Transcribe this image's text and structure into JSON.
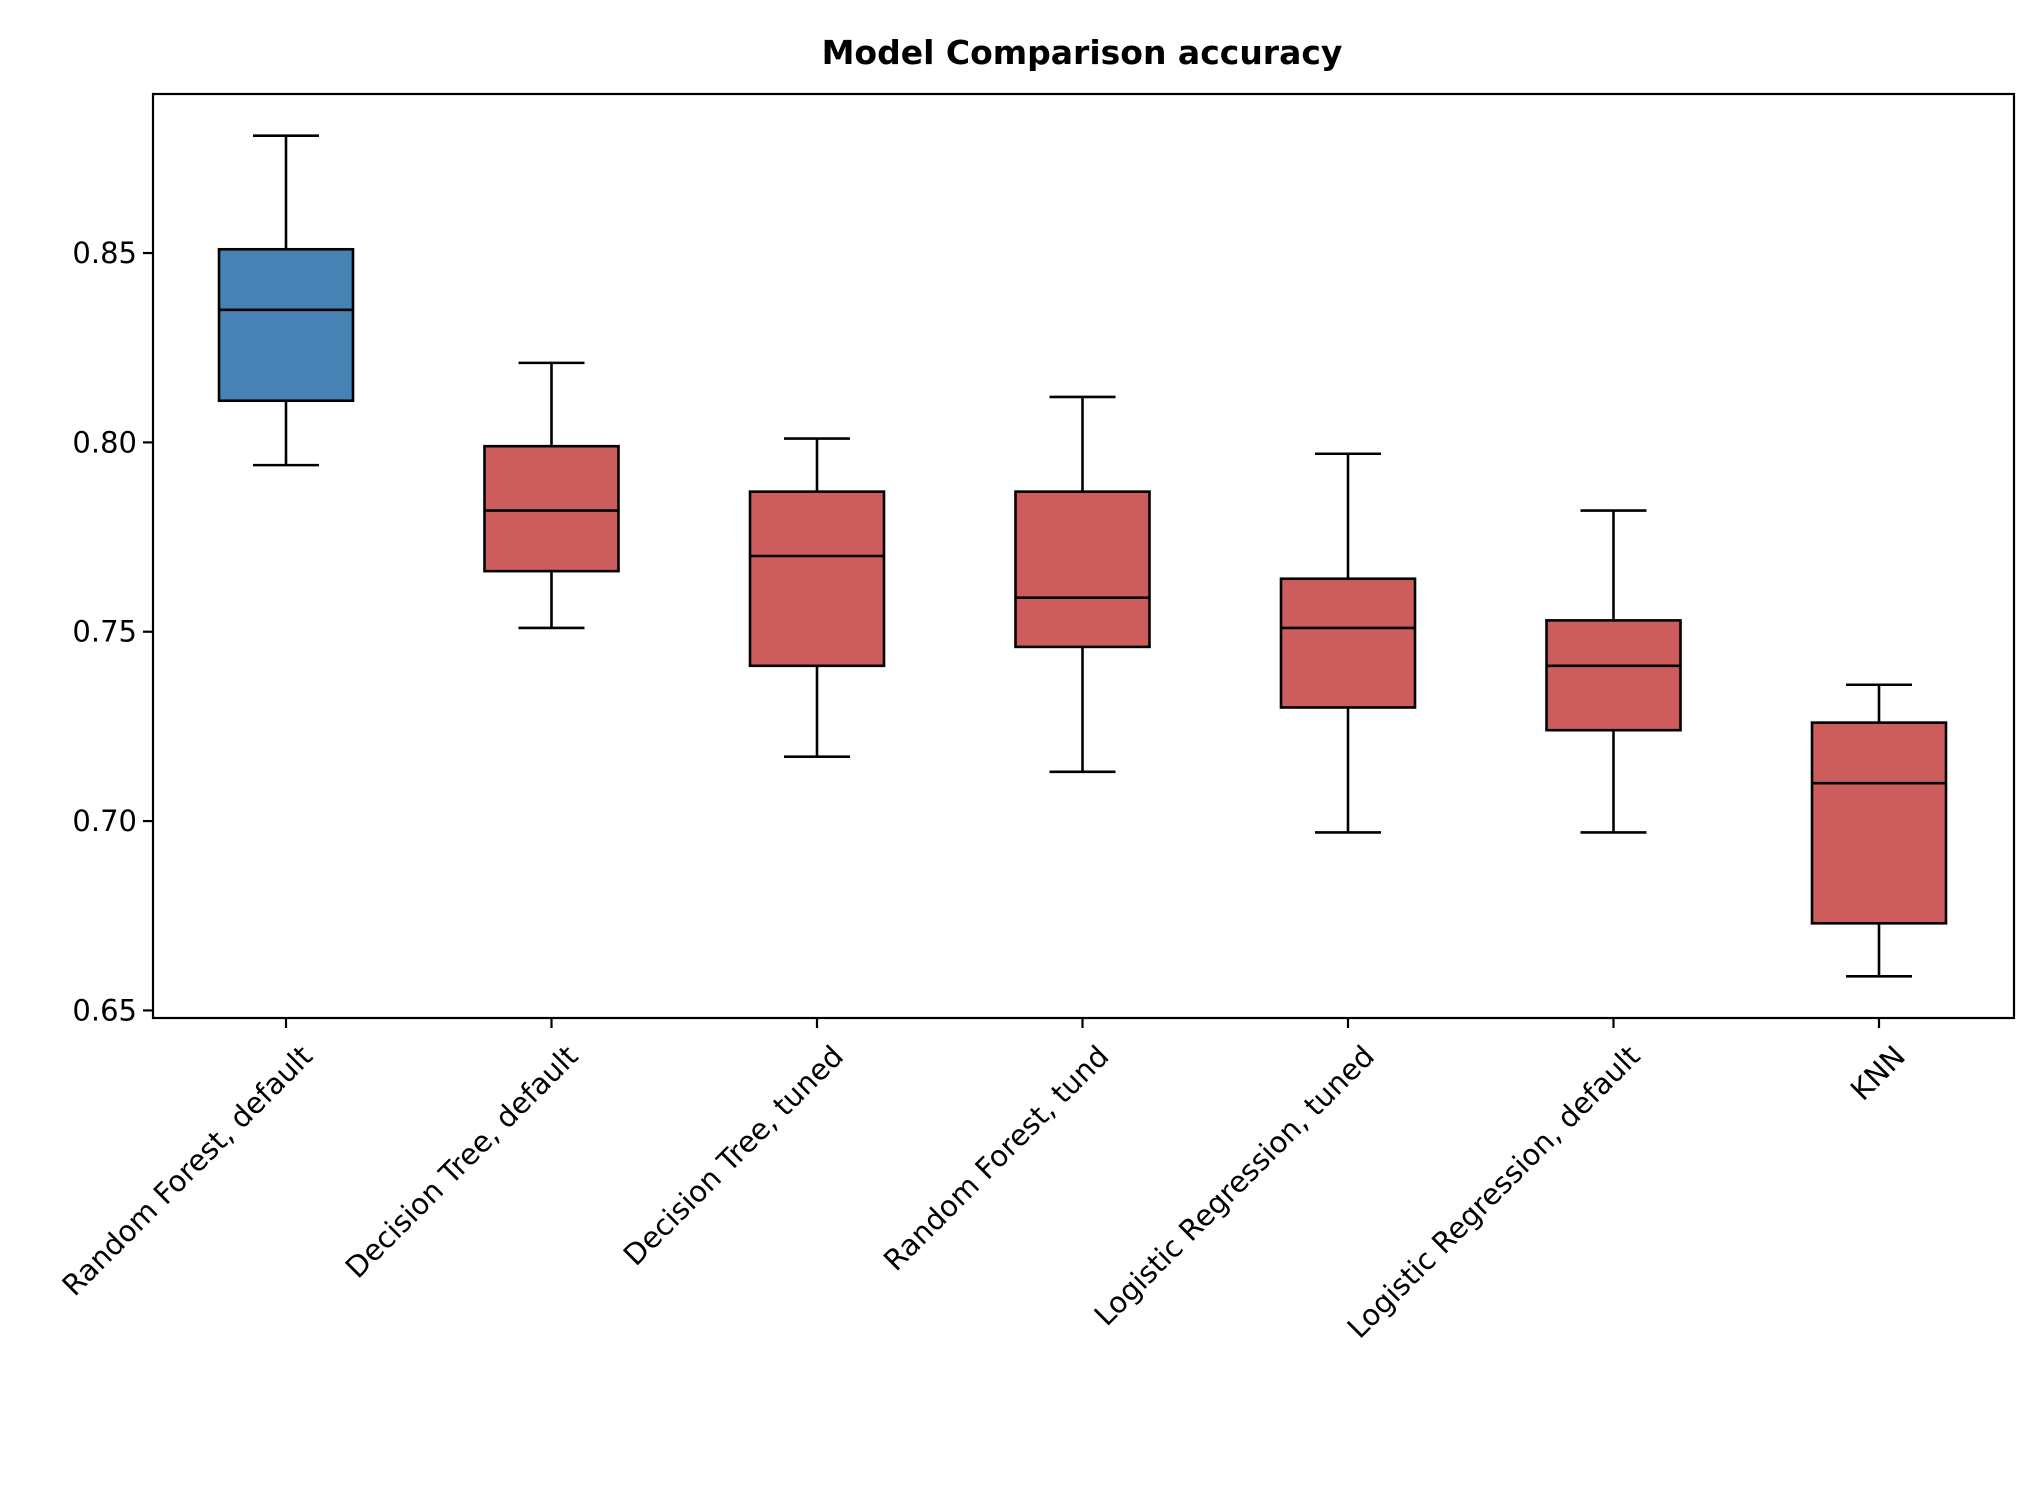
{
  "chart_data": {
    "type": "box",
    "title": "Model Comparison accuracy",
    "xlabel": "",
    "ylabel": "",
    "ylim": [
      0.648,
      0.892
    ],
    "yticks": [
      {
        "value": 0.65,
        "label": "0.65"
      },
      {
        "value": 0.7,
        "label": "0.70"
      },
      {
        "value": 0.75,
        "label": "0.75"
      },
      {
        "value": 0.8,
        "label": "0.80"
      },
      {
        "value": 0.85,
        "label": "0.85"
      }
    ],
    "grid": false,
    "categories": [
      "Random Forest, default",
      "Decision Tree, default",
      "Decision Tree, tuned",
      "Random Forest, tund",
      "Logistic Regression, tuned",
      "Logistic Regression, default",
      "KNN"
    ],
    "boxes": [
      {
        "category": "Random Forest, default",
        "whisker_low": 0.794,
        "q1": 0.811,
        "median": 0.835,
        "q3": 0.851,
        "whisker_high": 0.881,
        "color": "#4682b4"
      },
      {
        "category": "Decision Tree, default",
        "whisker_low": 0.751,
        "q1": 0.766,
        "median": 0.782,
        "q3": 0.799,
        "whisker_high": 0.821,
        "color": "#cd5c5c"
      },
      {
        "category": "Decision Tree, tuned",
        "whisker_low": 0.717,
        "q1": 0.741,
        "median": 0.77,
        "q3": 0.787,
        "whisker_high": 0.801,
        "color": "#cd5c5c"
      },
      {
        "category": "Random Forest, tund",
        "whisker_low": 0.713,
        "q1": 0.746,
        "median": 0.759,
        "q3": 0.787,
        "whisker_high": 0.812,
        "color": "#cd5c5c"
      },
      {
        "category": "Logistic Regression, tuned",
        "whisker_low": 0.697,
        "q1": 0.73,
        "median": 0.751,
        "q3": 0.764,
        "whisker_high": 0.797,
        "color": "#cd5c5c"
      },
      {
        "category": "Logistic Regression, default",
        "whisker_low": 0.697,
        "q1": 0.724,
        "median": 0.741,
        "q3": 0.753,
        "whisker_high": 0.782,
        "color": "#cd5c5c"
      },
      {
        "category": "KNN",
        "whisker_low": 0.659,
        "q1": 0.673,
        "median": 0.71,
        "q3": 0.726,
        "whisker_high": 0.736,
        "color": "#cd5c5c"
      }
    ]
  }
}
